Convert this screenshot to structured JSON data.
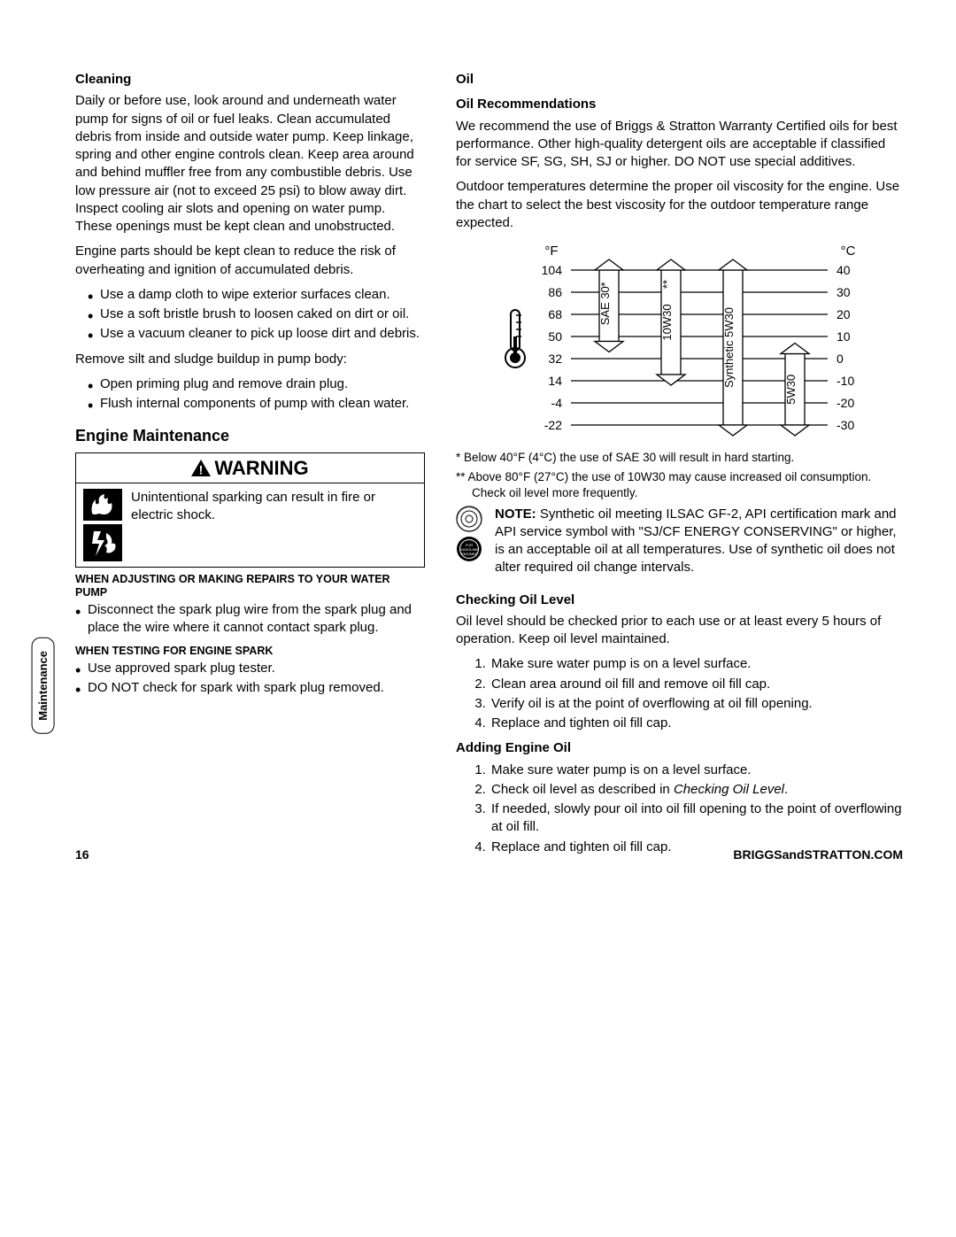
{
  "left": {
    "cleaning": {
      "heading": "Cleaning",
      "p1": "Daily or before use, look around and underneath water pump for signs of oil or fuel leaks. Clean accumulated debris from inside and outside water pump. Keep linkage, spring and other engine controls clean. Keep area around and behind muffler free from any combustible debris. Use low pressure air (not to exceed 25 psi) to blow away dirt. Inspect cooling air slots and opening on water pump. These openings must be kept clean and unobstructed.",
      "p2": "Engine parts should be kept clean to reduce the risk of overheating and ignition of accumulated debris.",
      "bullets1": [
        "Use a damp cloth to wipe exterior surfaces clean.",
        "Use a soft bristle brush to loosen caked on dirt or oil.",
        "Use a vacuum cleaner to pick up loose dirt and debris."
      ],
      "p3": "Remove silt and sludge buildup in pump body:",
      "bullets2": [
        "Open priming plug and remove drain plug.",
        "Flush internal components of pump with clean water."
      ]
    },
    "engine": {
      "heading": "Engine Maintenance",
      "warning_label": "WARNING",
      "warning_text": "Unintentional sparking can result in fire or electric shock.",
      "adj_heading": "WHEN ADJUSTING OR MAKING REPAIRS TO YOUR WATER PUMP",
      "adj_bullet": "Disconnect the spark plug wire from the spark plug and place the wire where it cannot contact spark plug.",
      "test_heading": "WHEN TESTING FOR ENGINE SPARK",
      "test_bullets": [
        "Use approved spark plug tester.",
        "DO NOT check for spark with spark plug removed."
      ]
    }
  },
  "right": {
    "oil_heading": "Oil",
    "rec_heading": "Oil Recommendations",
    "rec_p1": "We recommend the use of Briggs & Stratton Warranty Certified oils for best performance. Other high-quality detergent oils are acceptable if classified for service SF, SG, SH, SJ or higher. DO NOT use special additives.",
    "rec_p2": "Outdoor temperatures determine the proper oil viscosity for the engine. Use the chart to select the best viscosity for the outdoor temperature range expected.",
    "footnote1": "* Below 40°F (4°C) the use of SAE 30 will result in hard starting.",
    "footnote2": "** Above 80°F (27°C) the use of 10W30 may cause increased oil consumption. Check oil level more frequently.",
    "note_prefix": "NOTE:",
    "note_text": " Synthetic oil meeting ILSAC GF-2, API certification mark and API service symbol with \"SJ/CF ENERGY CONSERVING\" or higher, is an acceptable oil at all temperatures. Use of synthetic oil does not alter required oil change intervals.",
    "check_heading": "Checking Oil Level",
    "check_p": "Oil level should be checked prior to each use or at least every 5 hours of operation. Keep oil level maintained.",
    "check_steps": [
      "Make sure water pump is on a level surface.",
      "Clean area around oil fill and remove oil fill cap.",
      "Verify oil is at the point of overflowing at oil fill opening.",
      "Replace and tighten oil fill cap."
    ],
    "add_heading": "Adding Engine Oil",
    "add_steps": [
      "Make sure water pump is on a level surface.",
      "Check oil level as described in <span class=\"italic\">Checking Oil Level</span>.",
      "If needed, slowly pour oil into oil fill opening to the point of overflowing at oil fill.",
      "Replace and tighten oil fill cap."
    ]
  },
  "chart": {
    "f_label": "°F",
    "c_label": "°C",
    "f_ticks": [
      "104",
      "86",
      "68",
      "50",
      "32",
      "14",
      "-4",
      "-22"
    ],
    "c_ticks": [
      "40",
      "30",
      "20",
      "10",
      "0",
      "-10",
      "-20",
      "-30"
    ],
    "oils": [
      "SAE 30",
      "10W30",
      "Synthetic 5W30",
      "5W30"
    ],
    "star1": "*",
    "star2": "**"
  },
  "tab": "Maintenance",
  "page_number": "16",
  "footer_url": "BRIGGSandSTRATTON.COM"
}
